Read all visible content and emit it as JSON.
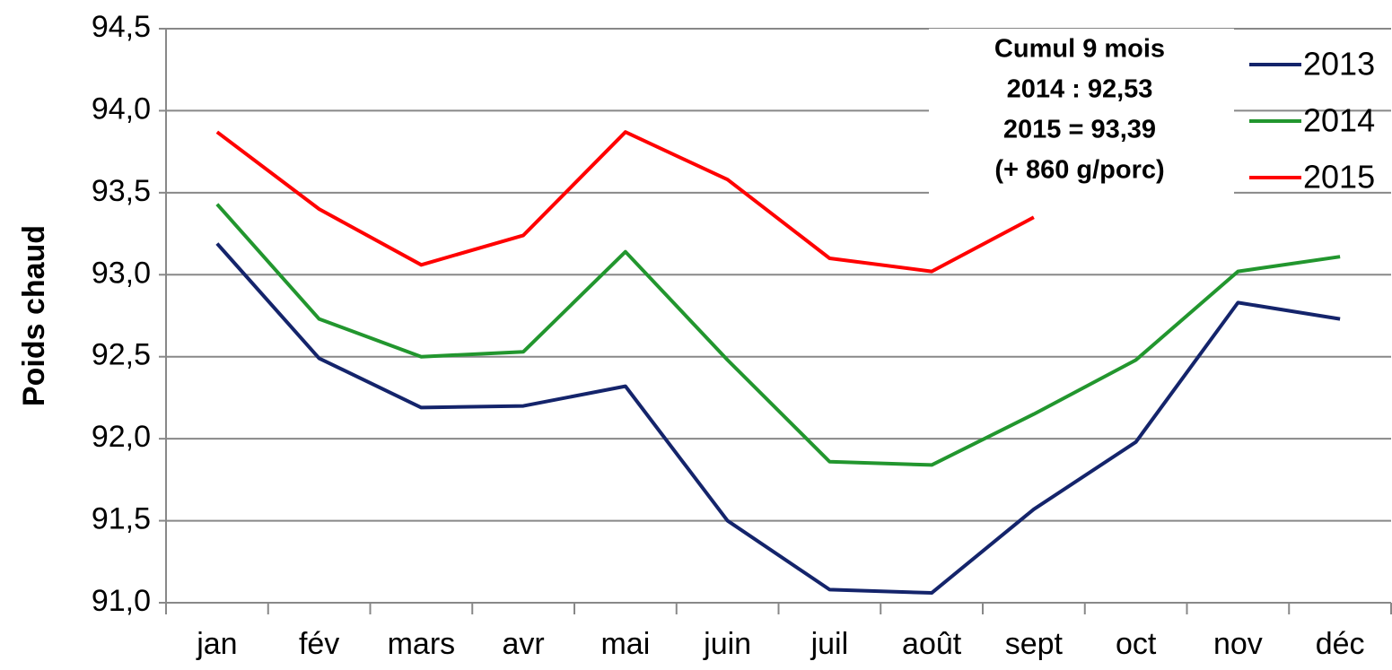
{
  "chart_data": {
    "type": "line",
    "y_label": "Poids chaud",
    "annotation": [
      "Cumul 9 mois",
      "2014 : 92,53",
      "2015 = 93,39",
      "(+ 860 g/porc)"
    ],
    "categories": [
      "jan",
      "fév",
      "mars",
      "avr",
      "mai",
      "juin",
      "juil",
      "août",
      "sept",
      "oct",
      "nov",
      "déc"
    ],
    "series": [
      {
        "name": "2013",
        "color": "#14246b",
        "values": [
          93.19,
          92.49,
          92.19,
          92.2,
          92.32,
          91.5,
          91.08,
          91.06,
          91.57,
          91.98,
          92.83,
          92.73
        ]
      },
      {
        "name": "2014",
        "color": "#22962e",
        "values": [
          93.43,
          92.73,
          92.5,
          92.53,
          93.14,
          92.48,
          91.86,
          91.84,
          92.15,
          92.48,
          93.02,
          93.11
        ]
      },
      {
        "name": "2015",
        "color": "#ff0000",
        "values": [
          93.87,
          93.4,
          93.06,
          93.24,
          93.87,
          93.58,
          93.1,
          93.02,
          93.35,
          null,
          null,
          null
        ]
      }
    ],
    "ylim": [
      91.0,
      94.5
    ],
    "yticks": [
      {
        "value": 91.0,
        "label": "91,0"
      },
      {
        "value": 91.5,
        "label": "91,5"
      },
      {
        "value": 92.0,
        "label": "92,0"
      },
      {
        "value": 92.5,
        "label": "92,5"
      },
      {
        "value": 93.0,
        "label": "93,0"
      },
      {
        "value": 93.5,
        "label": "93,5"
      },
      {
        "value": 94.0,
        "label": "94,0"
      },
      {
        "value": 94.5,
        "label": "94,5"
      }
    ],
    "grid": true,
    "legend": "upper right"
  }
}
